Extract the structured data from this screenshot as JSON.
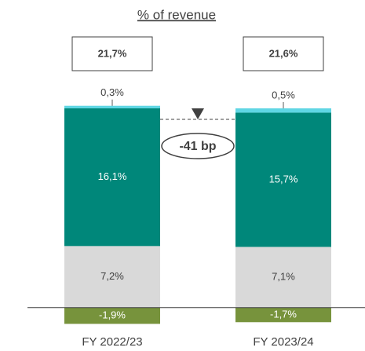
{
  "chart_data": {
    "type": "stacked_bar",
    "title": "% of revenue",
    "categories": [
      "FY 2022/23",
      "FY 2023/24"
    ],
    "ylim": [
      -2.5,
      30
    ],
    "series": [
      {
        "color": "#77933c",
        "values": [
          -1.9,
          -1.7
        ],
        "value_labels": [
          "-1,9%",
          "-1,7%"
        ]
      },
      {
        "color": "#d9d9d9",
        "values": [
          7.2,
          7.1
        ],
        "value_labels": [
          "7,2%",
          "7,1%"
        ]
      },
      {
        "color": "#00877a",
        "values": [
          16.1,
          15.7
        ],
        "value_labels": [
          "16,1%",
          "15,7%"
        ]
      },
      {
        "color": "#5fd6e4",
        "values": [
          0.3,
          0.5
        ],
        "value_labels": [
          "0,3%",
          "0,5%"
        ]
      }
    ],
    "totals": {
      "values": [
        21.7,
        21.6
      ],
      "value_labels": [
        "21,7%",
        "21,6%"
      ]
    },
    "annotation": "-41 bp"
  }
}
